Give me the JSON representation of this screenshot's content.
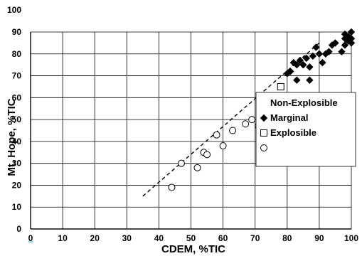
{
  "chart_data": {
    "type": "scatter",
    "title": "",
    "xlabel": "CDEM, %TIC",
    "ylabel": "Mt. Hope, %TIC",
    "xlim": [
      0,
      100
    ],
    "ylim": [
      0,
      100
    ],
    "x_ticks": [
      "0",
      "10",
      "20",
      "30",
      "40",
      "50",
      "60",
      "70",
      "80",
      "90",
      "100"
    ],
    "y_ticks": [
      "0",
      "10",
      "20",
      "30",
      "40",
      "50",
      "60",
      "70",
      "80",
      "90",
      "100"
    ],
    "grid": true,
    "legend_position": "right",
    "legend": [
      {
        "label": "Non-Explosible",
        "marker": ""
      },
      {
        "label": "Marginal",
        "marker": "filled-diamond"
      },
      {
        "label": "Explosible",
        "marker": "open-square"
      },
      {
        "label": "",
        "marker": "open-circle"
      }
    ],
    "series": [
      {
        "marker": "open-circle",
        "points": [
          [
            44,
            19
          ],
          [
            47,
            30
          ],
          [
            52,
            28
          ],
          [
            54,
            35
          ],
          [
            55,
            34
          ],
          [
            58,
            43
          ],
          [
            60,
            38
          ],
          [
            63,
            45
          ],
          [
            67,
            48
          ],
          [
            69,
            50
          ],
          [
            71,
            47
          ]
        ]
      },
      {
        "marker": "open-square",
        "points": [
          [
            73,
            51
          ],
          [
            78,
            65
          ]
        ]
      },
      {
        "marker": "filled-diamond",
        "points": [
          [
            80,
            71
          ],
          [
            81,
            72
          ],
          [
            82,
            76
          ],
          [
            83,
            75
          ],
          [
            84,
            77
          ],
          [
            85,
            75
          ],
          [
            86,
            78
          ],
          [
            87,
            74
          ],
          [
            83,
            68
          ],
          [
            87,
            68
          ],
          [
            88,
            79
          ],
          [
            89,
            83
          ],
          [
            90,
            80
          ],
          [
            91,
            76
          ],
          [
            92,
            80
          ],
          [
            93,
            81
          ],
          [
            94,
            84
          ],
          [
            95,
            85
          ],
          [
            97,
            81
          ],
          [
            98,
            87
          ],
          [
            98,
            89
          ],
          [
            99,
            86
          ],
          [
            99,
            88
          ],
          [
            100,
            90
          ],
          [
            100,
            85
          ],
          [
            100,
            87
          ],
          [
            98,
            84
          ]
        ]
      }
    ],
    "trendline": {
      "style": "dashed",
      "points": [
        [
          35,
          15
        ],
        [
          90,
          85
        ]
      ]
    },
    "colors": {
      "marker": "#000000",
      "grid": "#000000",
      "axis_tick_accent": "#00aaaa"
    }
  }
}
